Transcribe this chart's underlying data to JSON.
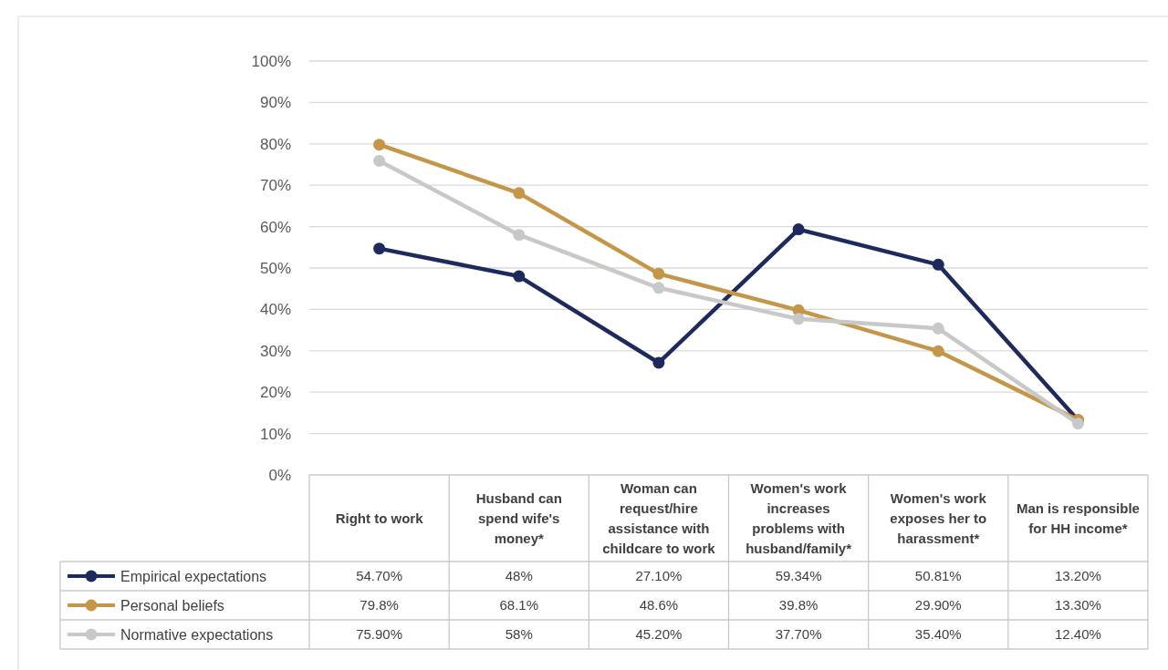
{
  "chart_data": {
    "type": "line",
    "categories": [
      "Right to work",
      "Husband can spend wife's money*",
      "Woman can request/hire assistance with childcare to work",
      "Women's work increases problems with husband/family*",
      "Women's work exposes her to harassment*",
      "Man is responsible for HH income*"
    ],
    "series": [
      {
        "name": "Empirical expectations",
        "color": "#1f2a5c",
        "values": [
          54.7,
          48,
          27.1,
          59.34,
          50.81,
          13.2
        ],
        "value_labels": [
          "54.70%",
          "48%",
          "27.10%",
          "59.34%",
          "50.81%",
          "13.20%"
        ]
      },
      {
        "name": "Personal beliefs",
        "color": "#c4964a",
        "values": [
          79.8,
          68.1,
          48.6,
          39.8,
          29.9,
          13.3
        ],
        "value_labels": [
          "79.8%",
          "68.1%",
          "48.6%",
          "39.8%",
          "29.90%",
          "13.30%"
        ]
      },
      {
        "name": "Normative expectations",
        "color": "#c8c8c8",
        "values": [
          75.9,
          58,
          45.2,
          37.7,
          35.4,
          12.4
        ],
        "value_labels": [
          "75.90%",
          "58%",
          "45.20%",
          "37.70%",
          "35.40%",
          "12.40%"
        ]
      }
    ],
    "ylim": [
      0,
      100
    ],
    "yticks": [
      {
        "value": 0,
        "label": "0%"
      },
      {
        "value": 10,
        "label": "10%"
      },
      {
        "value": 20,
        "label": "20%"
      },
      {
        "value": 30,
        "label": "30%"
      },
      {
        "value": 40,
        "label": "40%"
      },
      {
        "value": 50,
        "label": "50%"
      },
      {
        "value": 60,
        "label": "60%"
      },
      {
        "value": 70,
        "label": "70%"
      },
      {
        "value": 80,
        "label": "80%"
      },
      {
        "value": 90,
        "label": "90%"
      },
      {
        "value": 100,
        "label": "100%"
      }
    ],
    "grid": "y",
    "legend": "bottom left",
    "marker": "circle",
    "line_style": "solid"
  }
}
